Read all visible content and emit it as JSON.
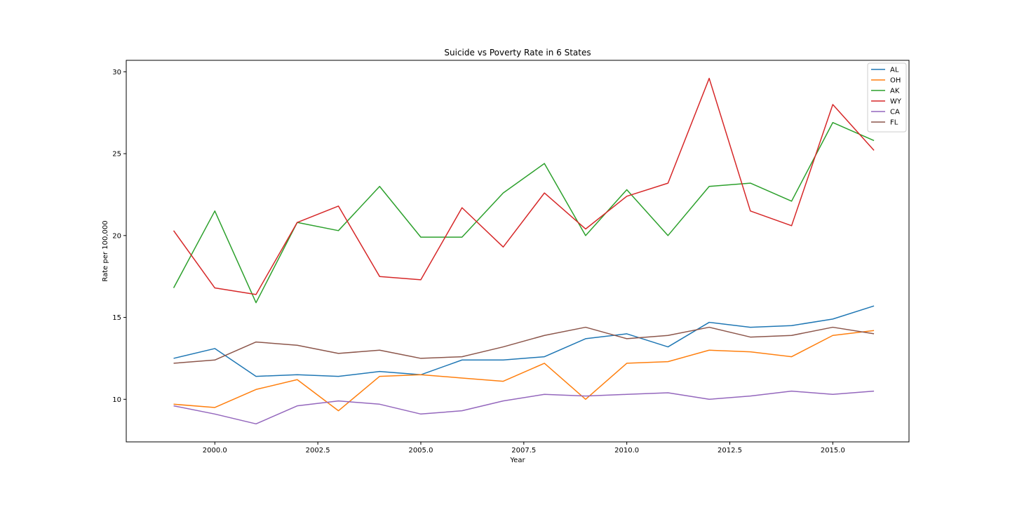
{
  "chart_data": {
    "type": "line",
    "title": "Suicide vs Poverty Rate in 6 States",
    "xlabel": "Year",
    "ylabel": "Rate per 100,000",
    "x": [
      1999,
      2000,
      2001,
      2002,
      2003,
      2004,
      2005,
      2006,
      2007,
      2008,
      2009,
      2010,
      2011,
      2012,
      2013,
      2014,
      2015,
      2016
    ],
    "xlim": [
      1997.85,
      2016.85
    ],
    "ylim": [
      7.4,
      30.7
    ],
    "x_ticks": [
      2000.0,
      2002.5,
      2005.0,
      2007.5,
      2010.0,
      2012.5,
      2015.0
    ],
    "x_tick_labels": [
      "2000.0",
      "2002.5",
      "2005.0",
      "2007.5",
      "2010.0",
      "2012.5",
      "2015.0"
    ],
    "y_ticks": [
      10,
      15,
      20,
      25,
      30
    ],
    "y_tick_labels": [
      "10",
      "15",
      "20",
      "25",
      "30"
    ],
    "grid": false,
    "legend_position": "top-right",
    "series": [
      {
        "name": "AL",
        "color": "#1f77b4",
        "values": [
          12.5,
          13.1,
          11.4,
          11.5,
          11.4,
          11.7,
          11.5,
          12.4,
          12.4,
          12.6,
          13.7,
          14.0,
          13.2,
          14.7,
          14.4,
          14.5,
          14.9,
          15.7
        ]
      },
      {
        "name": "OH",
        "color": "#ff7f0e",
        "values": [
          9.7,
          9.5,
          10.6,
          11.2,
          9.3,
          11.4,
          11.5,
          11.3,
          11.1,
          12.2,
          10.0,
          12.2,
          12.3,
          13.0,
          12.9,
          12.6,
          13.9,
          14.2
        ]
      },
      {
        "name": "AK",
        "color": "#2ca02c",
        "values": [
          16.8,
          21.5,
          15.9,
          20.8,
          20.3,
          23.0,
          19.9,
          19.9,
          22.6,
          24.4,
          20.0,
          22.8,
          20.0,
          23.0,
          23.2,
          22.1,
          26.9,
          25.8
        ]
      },
      {
        "name": "WY",
        "color": "#d62728",
        "values": [
          20.3,
          16.8,
          16.4,
          20.8,
          21.8,
          17.5,
          17.3,
          21.7,
          19.3,
          22.6,
          20.4,
          22.4,
          23.2,
          29.6,
          21.5,
          20.6,
          28.0,
          25.2
        ]
      },
      {
        "name": "CA",
        "color": "#9467bd",
        "values": [
          9.6,
          9.1,
          8.5,
          9.6,
          9.9,
          9.7,
          9.1,
          9.3,
          9.9,
          10.3,
          10.2,
          10.3,
          10.4,
          10.0,
          10.2,
          10.5,
          10.3,
          10.5
        ]
      },
      {
        "name": "FL",
        "color": "#8c564b",
        "values": [
          12.2,
          12.4,
          13.5,
          13.3,
          12.8,
          13.0,
          12.5,
          12.6,
          13.2,
          13.9,
          14.4,
          13.7,
          13.9,
          14.4,
          13.8,
          13.9,
          14.4,
          14.0
        ]
      }
    ]
  }
}
